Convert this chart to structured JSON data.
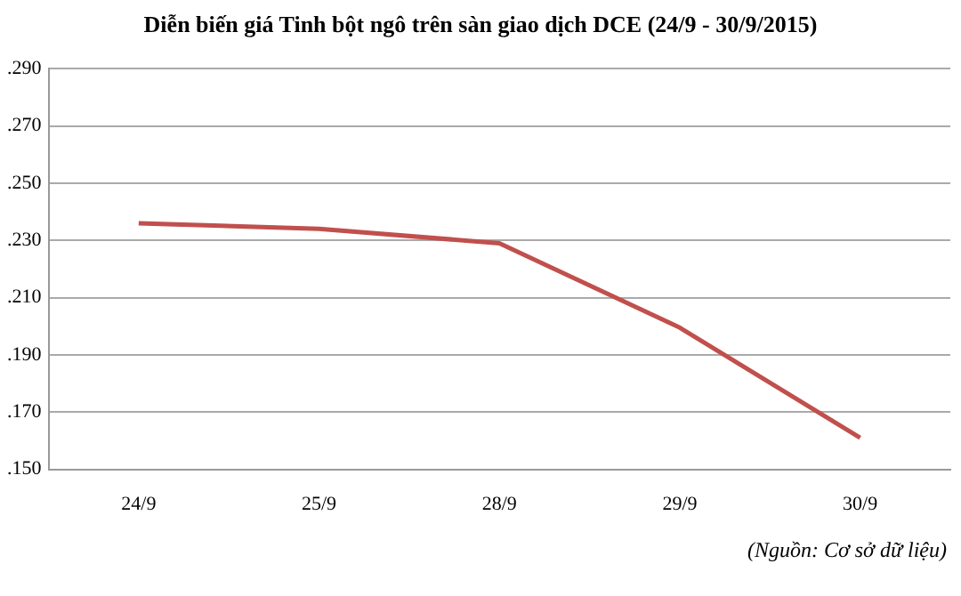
{
  "chart_data": {
    "type": "line",
    "title": "Diễn biến giá Tinh bột ngô trên sàn giao dịch DCE (24/9 - 30/9/2015)",
    "categories": [
      "24/9",
      "25/9",
      "28/9",
      "29/9",
      "30/9"
    ],
    "series": [
      {
        "color": "#c0504d",
        "values": [
          0.236,
          0.234,
          0.229,
          0.1995,
          0.161
        ]
      }
    ],
    "ylim": [
      0.15,
      0.29
    ],
    "yticks": [
      {
        "value": 0.15,
        "label": ".150"
      },
      {
        "value": 0.17,
        "label": ".170"
      },
      {
        "value": 0.19,
        "label": ".190"
      },
      {
        "value": 0.21,
        "label": ".210"
      },
      {
        "value": 0.23,
        "label": ".230"
      },
      {
        "value": 0.25,
        "label": ".250"
      },
      {
        "value": 0.27,
        "label": ".270"
      },
      {
        "value": 0.29,
        "label": ".290"
      }
    ],
    "grid": "y",
    "legend": false,
    "marker": "none",
    "line_style": "solid",
    "annotations": [
      "(Nguồn: Cơ sở dữ liệu)"
    ]
  }
}
